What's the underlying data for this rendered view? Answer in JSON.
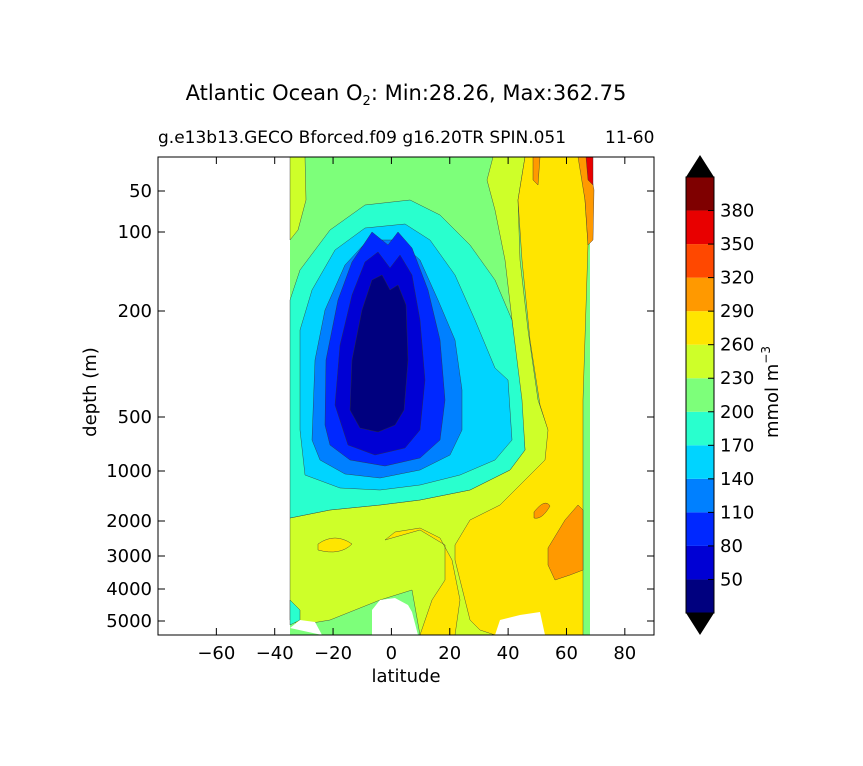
{
  "figure": {
    "title_main": "Atlantic Ocean O",
    "title_sub": "2",
    "title_rest": ": Min:28.26, Max:362.75",
    "subtitle_left": "g.e13b13.GECO Bforced.f09 g16.20TR SPIN.051",
    "subtitle_right": "11-60"
  },
  "chart_data": {
    "type": "contourf",
    "xlabel": "latitude",
    "ylabel": "depth (m)",
    "xlim": [
      -80,
      90
    ],
    "xticks": [
      -60,
      -40,
      -20,
      0,
      20,
      40,
      60,
      80
    ],
    "x_tick_labels": [
      "−60",
      "−40",
      "−20",
      "0",
      "20",
      "40",
      "60",
      "80"
    ],
    "ylim": [
      5500,
      0
    ],
    "y_scale": "nonlinear (compressed at depth)",
    "yticks": [
      50,
      100,
      200,
      500,
      1000,
      2000,
      3000,
      4000,
      5000
    ],
    "y_tick_labels": [
      "50",
      "100",
      "200",
      "500",
      "1000",
      "2000",
      "3000",
      "4000",
      "5000"
    ],
    "data_extent_lat": [
      -34,
      68
    ],
    "levels": [
      20,
      50,
      80,
      110,
      140,
      170,
      200,
      230,
      260,
      290,
      320,
      350,
      380,
      410
    ],
    "level_colors": [
      "#00007f",
      "#0000d4",
      "#0028ff",
      "#0080ff",
      "#00d4ff",
      "#29ffce",
      "#7dff7a",
      "#ceff29",
      "#ffe500",
      "#ff9900",
      "#ff4800",
      "#e80000",
      "#7f0000"
    ],
    "colorbar": {
      "label": "mmol m",
      "label_sup": "−3",
      "ticks": [
        "50",
        "80",
        "110",
        "140",
        "170",
        "200",
        "230",
        "260",
        "290",
        "320",
        "350",
        "380"
      ],
      "extend": "both",
      "extend_colors": {
        "min": "#000000",
        "max": "#000000"
      }
    },
    "features": {
      "oxygen_minimum_core_lat": [
        -10,
        10
      ],
      "oxygen_minimum_core_depth_m": [
        200,
        800
      ],
      "min_value": 28.26,
      "max_value": 362.75
    },
    "grid": false
  }
}
